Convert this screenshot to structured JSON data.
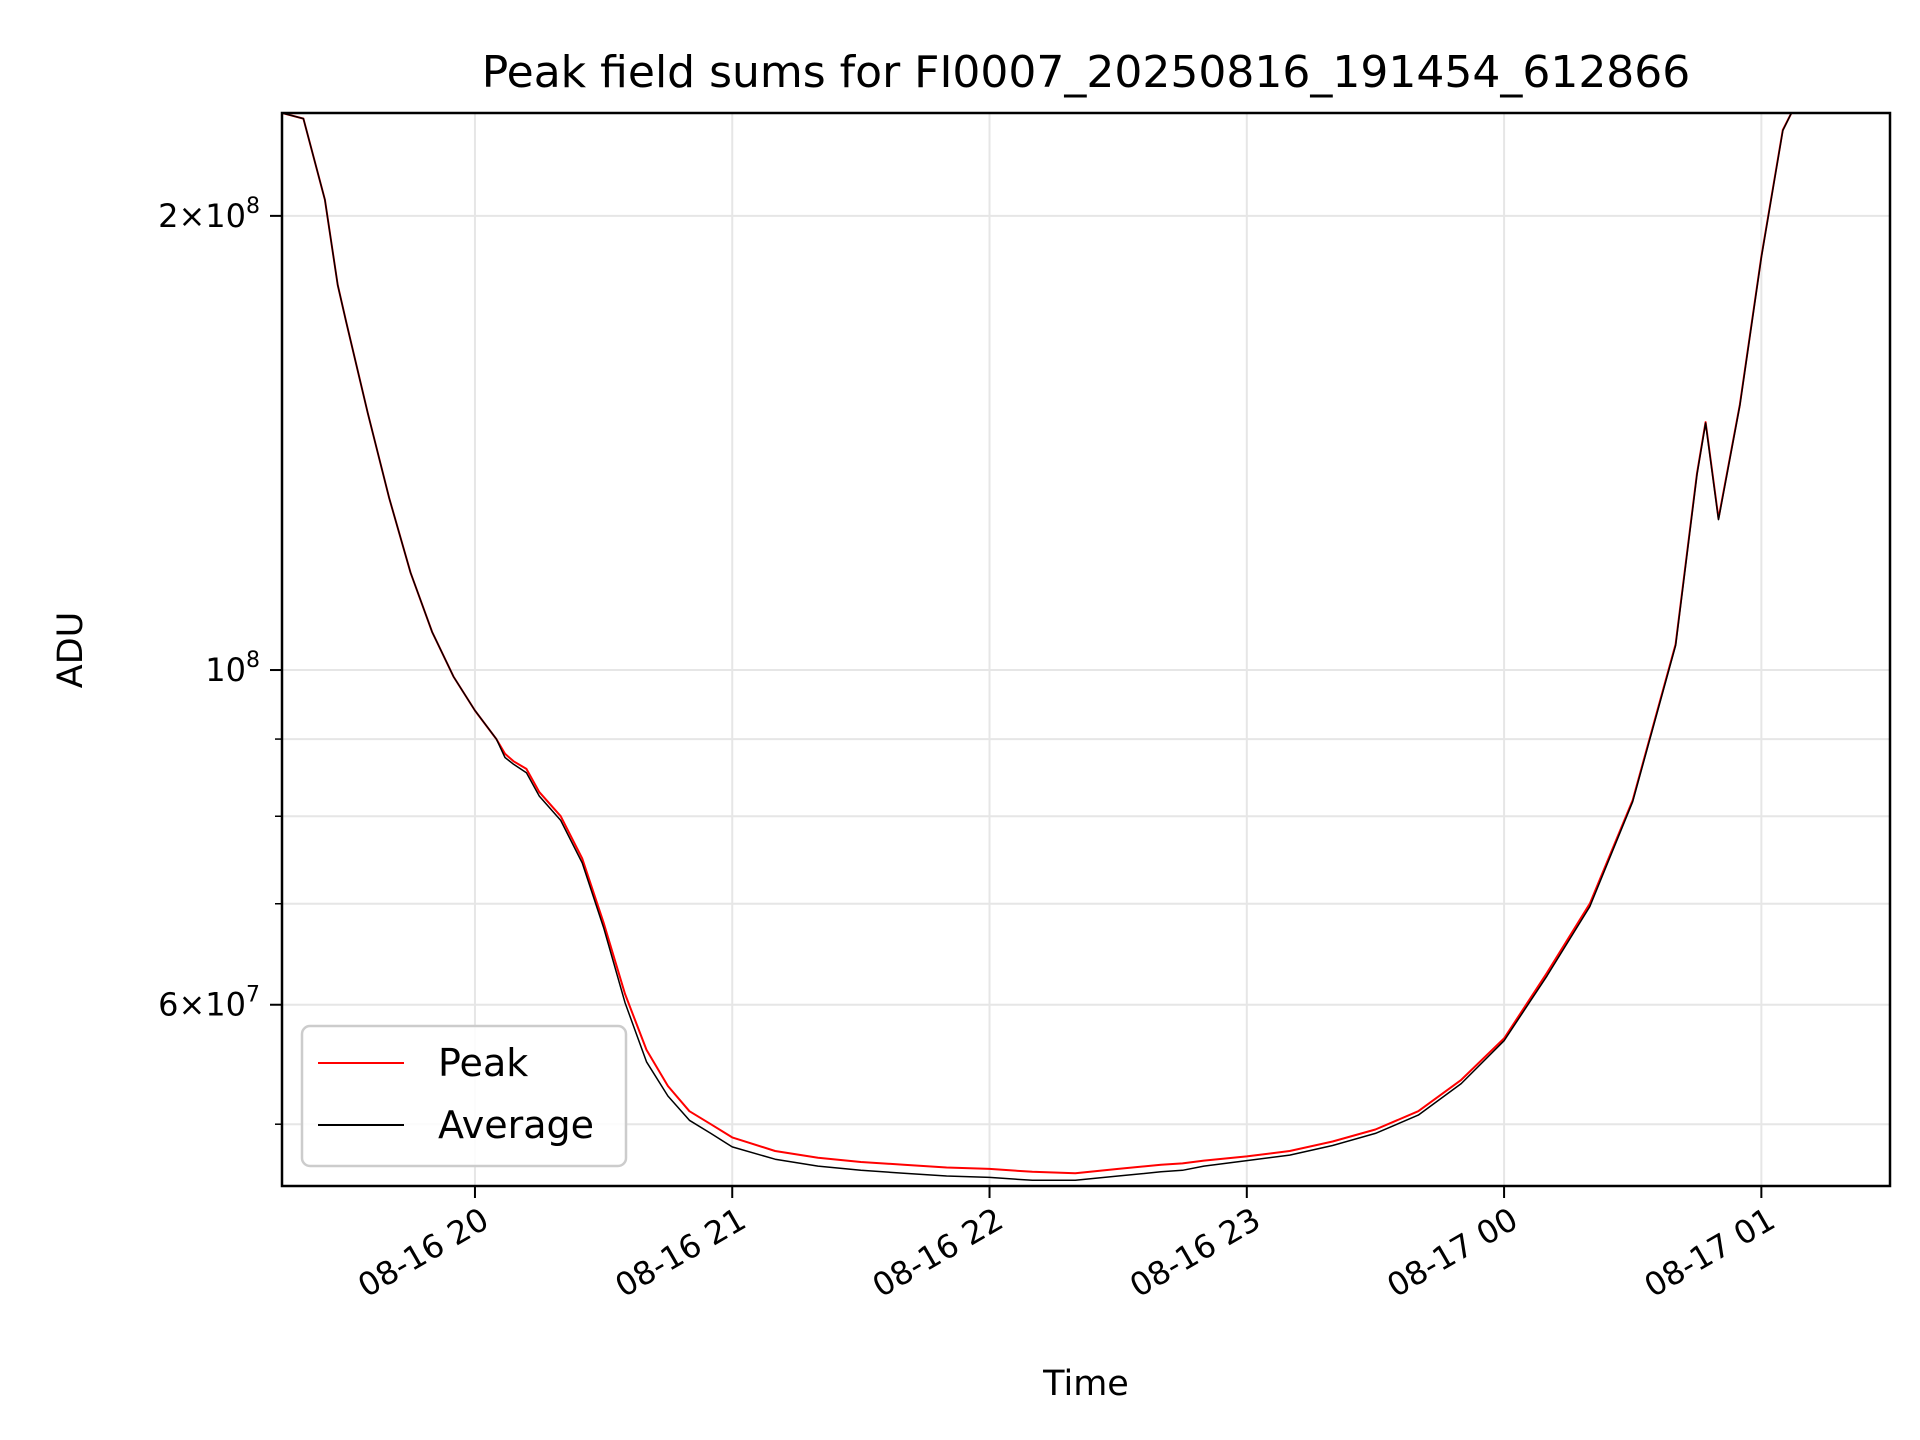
{
  "chart_data": {
    "type": "line",
    "title": "Peak field sums for FI0007_20250816_191454_612866",
    "xlabel": "Time",
    "ylabel": "ADU",
    "yscale": "log",
    "xlim": [
      "2025-08-16 19:15",
      "2025-08-17 01:30"
    ],
    "ylim": [
      45500000,
      234000000
    ],
    "x_ticks": [
      {
        "t": "2025-08-16 20:00",
        "label": "08-16 20"
      },
      {
        "t": "2025-08-16 21:00",
        "label": "08-16 21"
      },
      {
        "t": "2025-08-16 22:00",
        "label": "08-16 22"
      },
      {
        "t": "2025-08-16 23:00",
        "label": "08-16 23"
      },
      {
        "t": "2025-08-17 00:00",
        "label": "08-17 00"
      },
      {
        "t": "2025-08-17 01:00",
        "label": "08-17 01"
      }
    ],
    "y_major_ticks": [
      {
        "value": 60000000,
        "mant": "6",
        "exp": "7"
      },
      {
        "value": 100000000,
        "mant": "",
        "exp": "8"
      },
      {
        "value": 200000000,
        "mant": "2",
        "exp": "8"
      }
    ],
    "y_minor_ticks": [
      50000000,
      70000000,
      80000000,
      90000000
    ],
    "grid": true,
    "legend_position": "lower-left",
    "colors": {
      "peak": "#ff0000",
      "average": "#000000"
    },
    "x": [
      "2025-08-16 19:15",
      "2025-08-16 19:20",
      "2025-08-16 19:25",
      "2025-08-16 19:28",
      "2025-08-16 19:30",
      "2025-08-16 19:35",
      "2025-08-16 19:40",
      "2025-08-16 19:45",
      "2025-08-16 19:50",
      "2025-08-16 19:55",
      "2025-08-16 20:00",
      "2025-08-16 20:05",
      "2025-08-16 20:07",
      "2025-08-16 20:09",
      "2025-08-16 20:12",
      "2025-08-16 20:15",
      "2025-08-16 20:20",
      "2025-08-16 20:25",
      "2025-08-16 20:30",
      "2025-08-16 20:35",
      "2025-08-16 20:40",
      "2025-08-16 20:45",
      "2025-08-16 20:50",
      "2025-08-16 20:55",
      "2025-08-16 21:00",
      "2025-08-16 21:10",
      "2025-08-16 21:20",
      "2025-08-16 21:30",
      "2025-08-16 21:40",
      "2025-08-16 21:50",
      "2025-08-16 22:00",
      "2025-08-16 22:10",
      "2025-08-16 22:20",
      "2025-08-16 22:30",
      "2025-08-16 22:40",
      "2025-08-16 22:45",
      "2025-08-16 22:50",
      "2025-08-16 23:00",
      "2025-08-16 23:10",
      "2025-08-16 23:20",
      "2025-08-16 23:30",
      "2025-08-16 23:40",
      "2025-08-16 23:50",
      "2025-08-17 00:00",
      "2025-08-17 00:10",
      "2025-08-17 00:20",
      "2025-08-17 00:30",
      "2025-08-17 00:40",
      "2025-08-17 00:45",
      "2025-08-17 00:47",
      "2025-08-17 00:50",
      "2025-08-17 00:55",
      "2025-08-17 01:00",
      "2025-08-17 01:05",
      "2025-08-17 01:07"
    ],
    "series": [
      {
        "name": "Peak",
        "color": "#ff0000",
        "values": [
          234000000,
          232000000,
          205000000,
          180000000,
          170000000,
          148000000,
          130000000,
          116000000,
          106000000,
          99000000,
          94000000,
          90000000,
          88000000,
          87000000,
          86000000,
          83000000,
          80000000,
          75000000,
          68000000,
          61000000,
          56000000,
          53000000,
          51000000,
          50000000,
          49000000,
          48000000,
          47500000,
          47200000,
          47000000,
          46800000,
          46700000,
          46500000,
          46400000,
          46700000,
          47000000,
          47100000,
          47300000,
          47600000,
          48000000,
          48700000,
          49600000,
          51000000,
          53500000,
          57000000,
          63000000,
          70000000,
          82000000,
          104000000,
          135000000,
          146000000,
          126000000,
          150000000,
          188000000,
          228000000,
          234000000
        ]
      },
      {
        "name": "Average",
        "color": "#000000",
        "values": [
          234000000,
          232000000,
          205000000,
          180000000,
          170000000,
          148000000,
          130000000,
          116000000,
          106000000,
          99000000,
          94000000,
          90000000,
          87500000,
          86600000,
          85500000,
          82500000,
          79500000,
          74500000,
          67500000,
          60200000,
          55000000,
          52200000,
          50300000,
          49300000,
          48300000,
          47400000,
          46900000,
          46600000,
          46400000,
          46200000,
          46100000,
          45900000,
          45900000,
          46200000,
          46500000,
          46600000,
          46900000,
          47300000,
          47700000,
          48400000,
          49300000,
          50700000,
          53200000,
          56800000,
          62700000,
          69700000,
          81800000,
          103800000,
          134800000,
          145800000,
          125800000,
          149800000,
          187800000,
          227800000,
          234000000
        ]
      }
    ]
  }
}
